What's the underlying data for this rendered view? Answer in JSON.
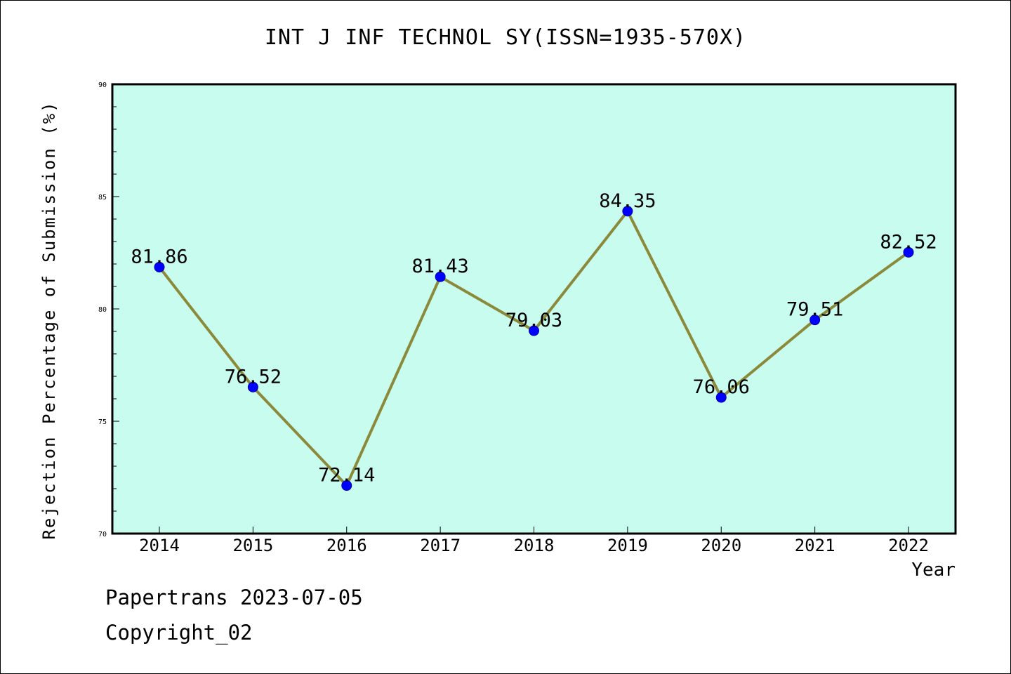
{
  "footer": {
    "line1": "Papertrans 2023-07-05",
    "line2": "Copyright_02"
  },
  "colors": {
    "plot_background": "#c8fcee",
    "line": "#8b8a3a",
    "marker": "#0000ff",
    "axis": "#000000"
  },
  "chart_data": {
    "type": "line",
    "title": "INT J INF TECHNOL SY(ISSN=1935-570X)",
    "xlabel": "Year",
    "ylabel": "Rejection Percentage of Submission (%)",
    "categories": [
      "2014",
      "2015",
      "2016",
      "2017",
      "2018",
      "2019",
      "2020",
      "2021",
      "2022"
    ],
    "series": [
      {
        "values": [
          81.86,
          76.52,
          72.14,
          81.43,
          79.03,
          84.35,
          76.06,
          79.51,
          82.52
        ],
        "data_labels": [
          "81.86",
          "76.52",
          "72.14",
          "81.43",
          "79.03",
          "84.35",
          "76.06",
          "79.51",
          "82.52"
        ]
      }
    ],
    "ylim": [
      70,
      90
    ],
    "yticks": [
      "70",
      "75",
      "80",
      "85",
      "90"
    ],
    "grid": false,
    "legend": "none"
  }
}
